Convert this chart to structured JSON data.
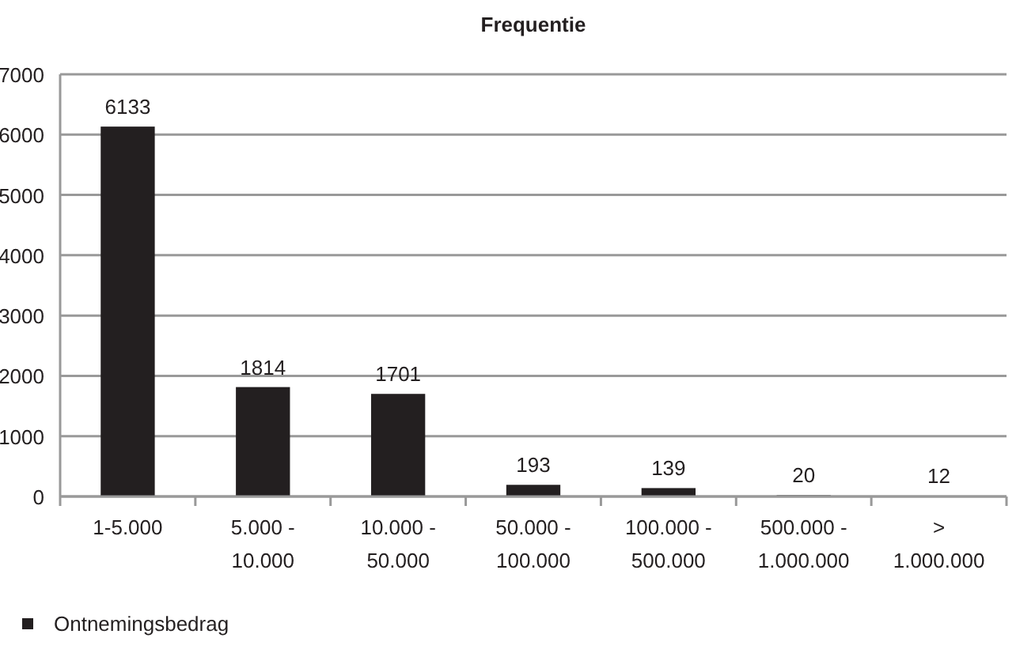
{
  "chart_data": {
    "type": "bar",
    "title": "Frequentie",
    "categories": [
      "1-5.000",
      "5.000 - 10.000",
      "10.000 - 50.000",
      "50.000 - 100.000",
      "100.000 - 500.000",
      "500.000 - 1.000.000",
      "> 1.000.000"
    ],
    "series": [
      {
        "name": "Ontnemingsbedrag",
        "color": "#231f20",
        "values": [
          6133,
          1814,
          1701,
          193,
          139,
          20,
          12
        ]
      }
    ],
    "ylim": [
      0,
      7000
    ],
    "yticks": [
      0,
      1000,
      2000,
      3000,
      4000,
      5000,
      6000,
      7000
    ],
    "grid": "y",
    "data_labels": true,
    "legend": "bottom left"
  }
}
